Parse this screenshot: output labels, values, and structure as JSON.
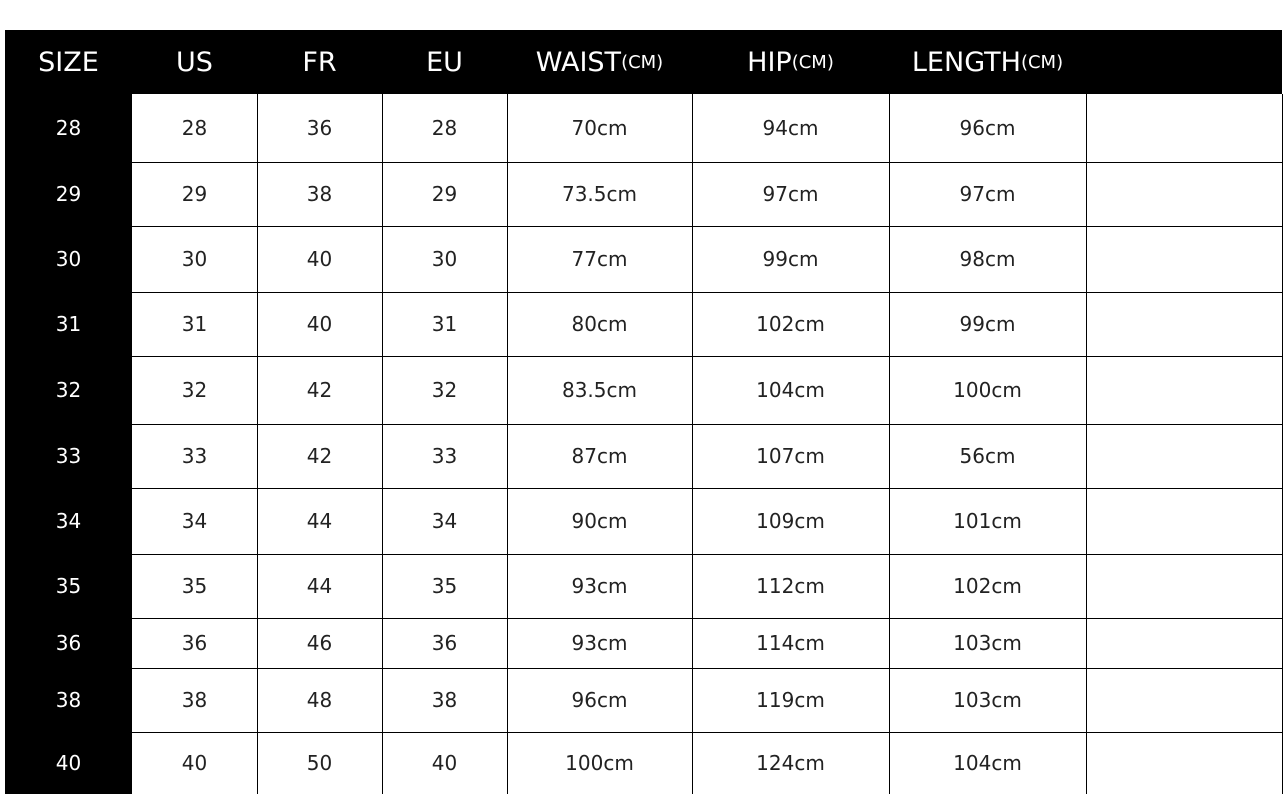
{
  "table": {
    "header": [
      {
        "main": "SIZE"
      },
      {
        "main": "US"
      },
      {
        "main": "FR"
      },
      {
        "main": "EU"
      },
      {
        "main": "WAIST",
        "unit": "(CM)"
      },
      {
        "main": "HIP",
        "unit": "(CM)"
      },
      {
        "main": "LENGTH",
        "unit": "(CM)"
      }
    ],
    "rows": [
      [
        "28",
        "28",
        "36",
        "28",
        "70cm",
        "94cm",
        "96cm"
      ],
      [
        "29",
        "29",
        "38",
        "29",
        "73.5cm",
        "97cm",
        "97cm"
      ],
      [
        "30",
        "30",
        "40",
        "30",
        "77cm",
        "99cm",
        "98cm"
      ],
      [
        "31",
        "31",
        "40",
        "31",
        "80cm",
        "102cm",
        "99cm"
      ],
      [
        "32",
        "32",
        "42",
        "32",
        "83.5cm",
        "104cm",
        "100cm"
      ],
      [
        "33",
        "33",
        "42",
        "33",
        "87cm",
        "107cm",
        "56cm"
      ],
      [
        "34",
        "34",
        "44",
        "34",
        "90cm",
        "109cm",
        "101cm"
      ],
      [
        "35",
        "35",
        "44",
        "35",
        "93cm",
        "112cm",
        "102cm"
      ],
      [
        "36",
        "36",
        "46",
        "36",
        "93cm",
        "114cm",
        "103cm"
      ],
      [
        "38",
        "38",
        "48",
        "38",
        "96cm",
        "119cm",
        "103cm"
      ],
      [
        "40",
        "40",
        "50",
        "40",
        "100cm",
        "124cm",
        "104cm"
      ]
    ]
  }
}
